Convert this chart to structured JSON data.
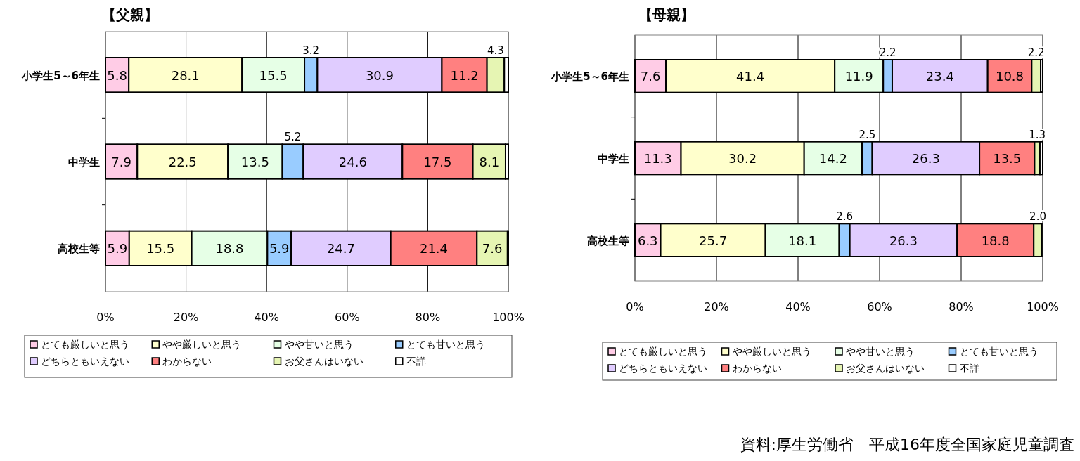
{
  "chart_data": [
    {
      "type": "bar",
      "title": "【父親】",
      "orientation": "horizontal",
      "stacked": true,
      "grid": "x",
      "legend": "bottom",
      "categories": [
        "小学生5～6年生",
        "中学生",
        "高校生等"
      ],
      "xlim": [
        0,
        100
      ],
      "xticks": [
        {
          "value": 0,
          "label": "0%"
        },
        {
          "value": 20,
          "label": "20%"
        },
        {
          "value": 40,
          "label": "40%"
        },
        {
          "value": 60,
          "label": "60%"
        },
        {
          "value": 80,
          "label": "80%"
        },
        {
          "value": 100,
          "label": "100%"
        }
      ],
      "series": [
        {
          "name": "とても厳しいと思う",
          "color": "#ffcce6",
          "values": [
            5.8,
            7.9,
            5.9
          ],
          "value_labels": [
            "5.8",
            "7.9",
            "5.9"
          ]
        },
        {
          "name": "やや厳しいと思う",
          "color": "#ffffcc",
          "values": [
            28.1,
            22.5,
            15.5
          ],
          "value_labels": [
            "28.1",
            "22.5",
            "15.5"
          ]
        },
        {
          "name": "やや甘いと思う",
          "color": "#e6ffe6",
          "values": [
            15.5,
            13.5,
            18.8
          ],
          "value_labels": [
            "15.5",
            "13.5",
            "18.8"
          ]
        },
        {
          "name": "とても甘いと思う",
          "color": "#99ccff",
          "values": [
            3.2,
            5.2,
            5.9
          ],
          "value_labels": [
            "3.2",
            "5.2",
            "5.9"
          ]
        },
        {
          "name": "どちらともいえない",
          "color": "#e0ccff",
          "values": [
            30.9,
            24.6,
            24.7
          ],
          "value_labels": [
            "30.9",
            "24.6",
            "24.7"
          ]
        },
        {
          "name": "わからない",
          "color": "#ff8080",
          "values": [
            11.2,
            17.5,
            21.4
          ],
          "value_labels": [
            "11.2",
            "17.5",
            "21.4"
          ]
        },
        {
          "name": "お父さんはいない",
          "color": "#e6f5b3",
          "values": [
            4.3,
            8.1,
            7.6
          ],
          "value_labels": [
            "4.3",
            "8.1",
            "7.6"
          ]
        },
        {
          "name": "不詳",
          "color": "#ffffff",
          "values": [
            1.0,
            0.7,
            0.2
          ],
          "value_labels": [
            null,
            null,
            null
          ]
        }
      ]
    },
    {
      "type": "bar",
      "title": "【母親】",
      "orientation": "horizontal",
      "stacked": true,
      "grid": "x",
      "legend": "bottom",
      "categories": [
        "小学生5～6年生",
        "中学生",
        "高校生等"
      ],
      "xlim": [
        0,
        100
      ],
      "xticks": [
        {
          "value": 0,
          "label": "0%"
        },
        {
          "value": 20,
          "label": "20%"
        },
        {
          "value": 40,
          "label": "40%"
        },
        {
          "value": 60,
          "label": "60%"
        },
        {
          "value": 80,
          "label": "80%"
        },
        {
          "value": 100,
          "label": "100%"
        }
      ],
      "annotations": [
        "資料:厚生労働省　平成16年度全国家庭児童調査"
      ],
      "series": [
        {
          "name": "とても厳しいと思う",
          "color": "#ffcce6",
          "values": [
            7.6,
            11.3,
            6.3
          ],
          "value_labels": [
            "7.6",
            "11.3",
            "6.3"
          ]
        },
        {
          "name": "やや厳しいと思う",
          "color": "#ffffcc",
          "values": [
            41.4,
            30.2,
            25.7
          ],
          "value_labels": [
            "41.4",
            "30.2",
            "25.7"
          ]
        },
        {
          "name": "やや甘いと思う",
          "color": "#e6ffe6",
          "values": [
            11.9,
            14.2,
            18.1
          ],
          "value_labels": [
            "11.9",
            "14.2",
            "18.1"
          ]
        },
        {
          "name": "とても甘いと思う",
          "color": "#99ccff",
          "values": [
            2.2,
            2.5,
            2.6
          ],
          "value_labels": [
            "2.2",
            "2.5",
            "2.6"
          ]
        },
        {
          "name": "どちらともいえない",
          "color": "#e0ccff",
          "values": [
            23.4,
            26.3,
            26.3
          ],
          "value_labels": [
            "23.4",
            "26.3",
            "26.3"
          ]
        },
        {
          "name": "わからない",
          "color": "#ff8080",
          "values": [
            10.8,
            13.5,
            18.8
          ],
          "value_labels": [
            "10.8",
            "13.5",
            "18.8"
          ]
        },
        {
          "name": "お父さんはいない",
          "color": "#e6f5b3",
          "values": [
            2.2,
            1.3,
            2.0
          ],
          "value_labels": [
            "2.2",
            "1.3",
            "2.0"
          ]
        },
        {
          "name": "不詳",
          "color": "#ffffff",
          "values": [
            0.5,
            0.7,
            0.0
          ],
          "value_labels": [
            null,
            null,
            null
          ]
        }
      ]
    }
  ]
}
